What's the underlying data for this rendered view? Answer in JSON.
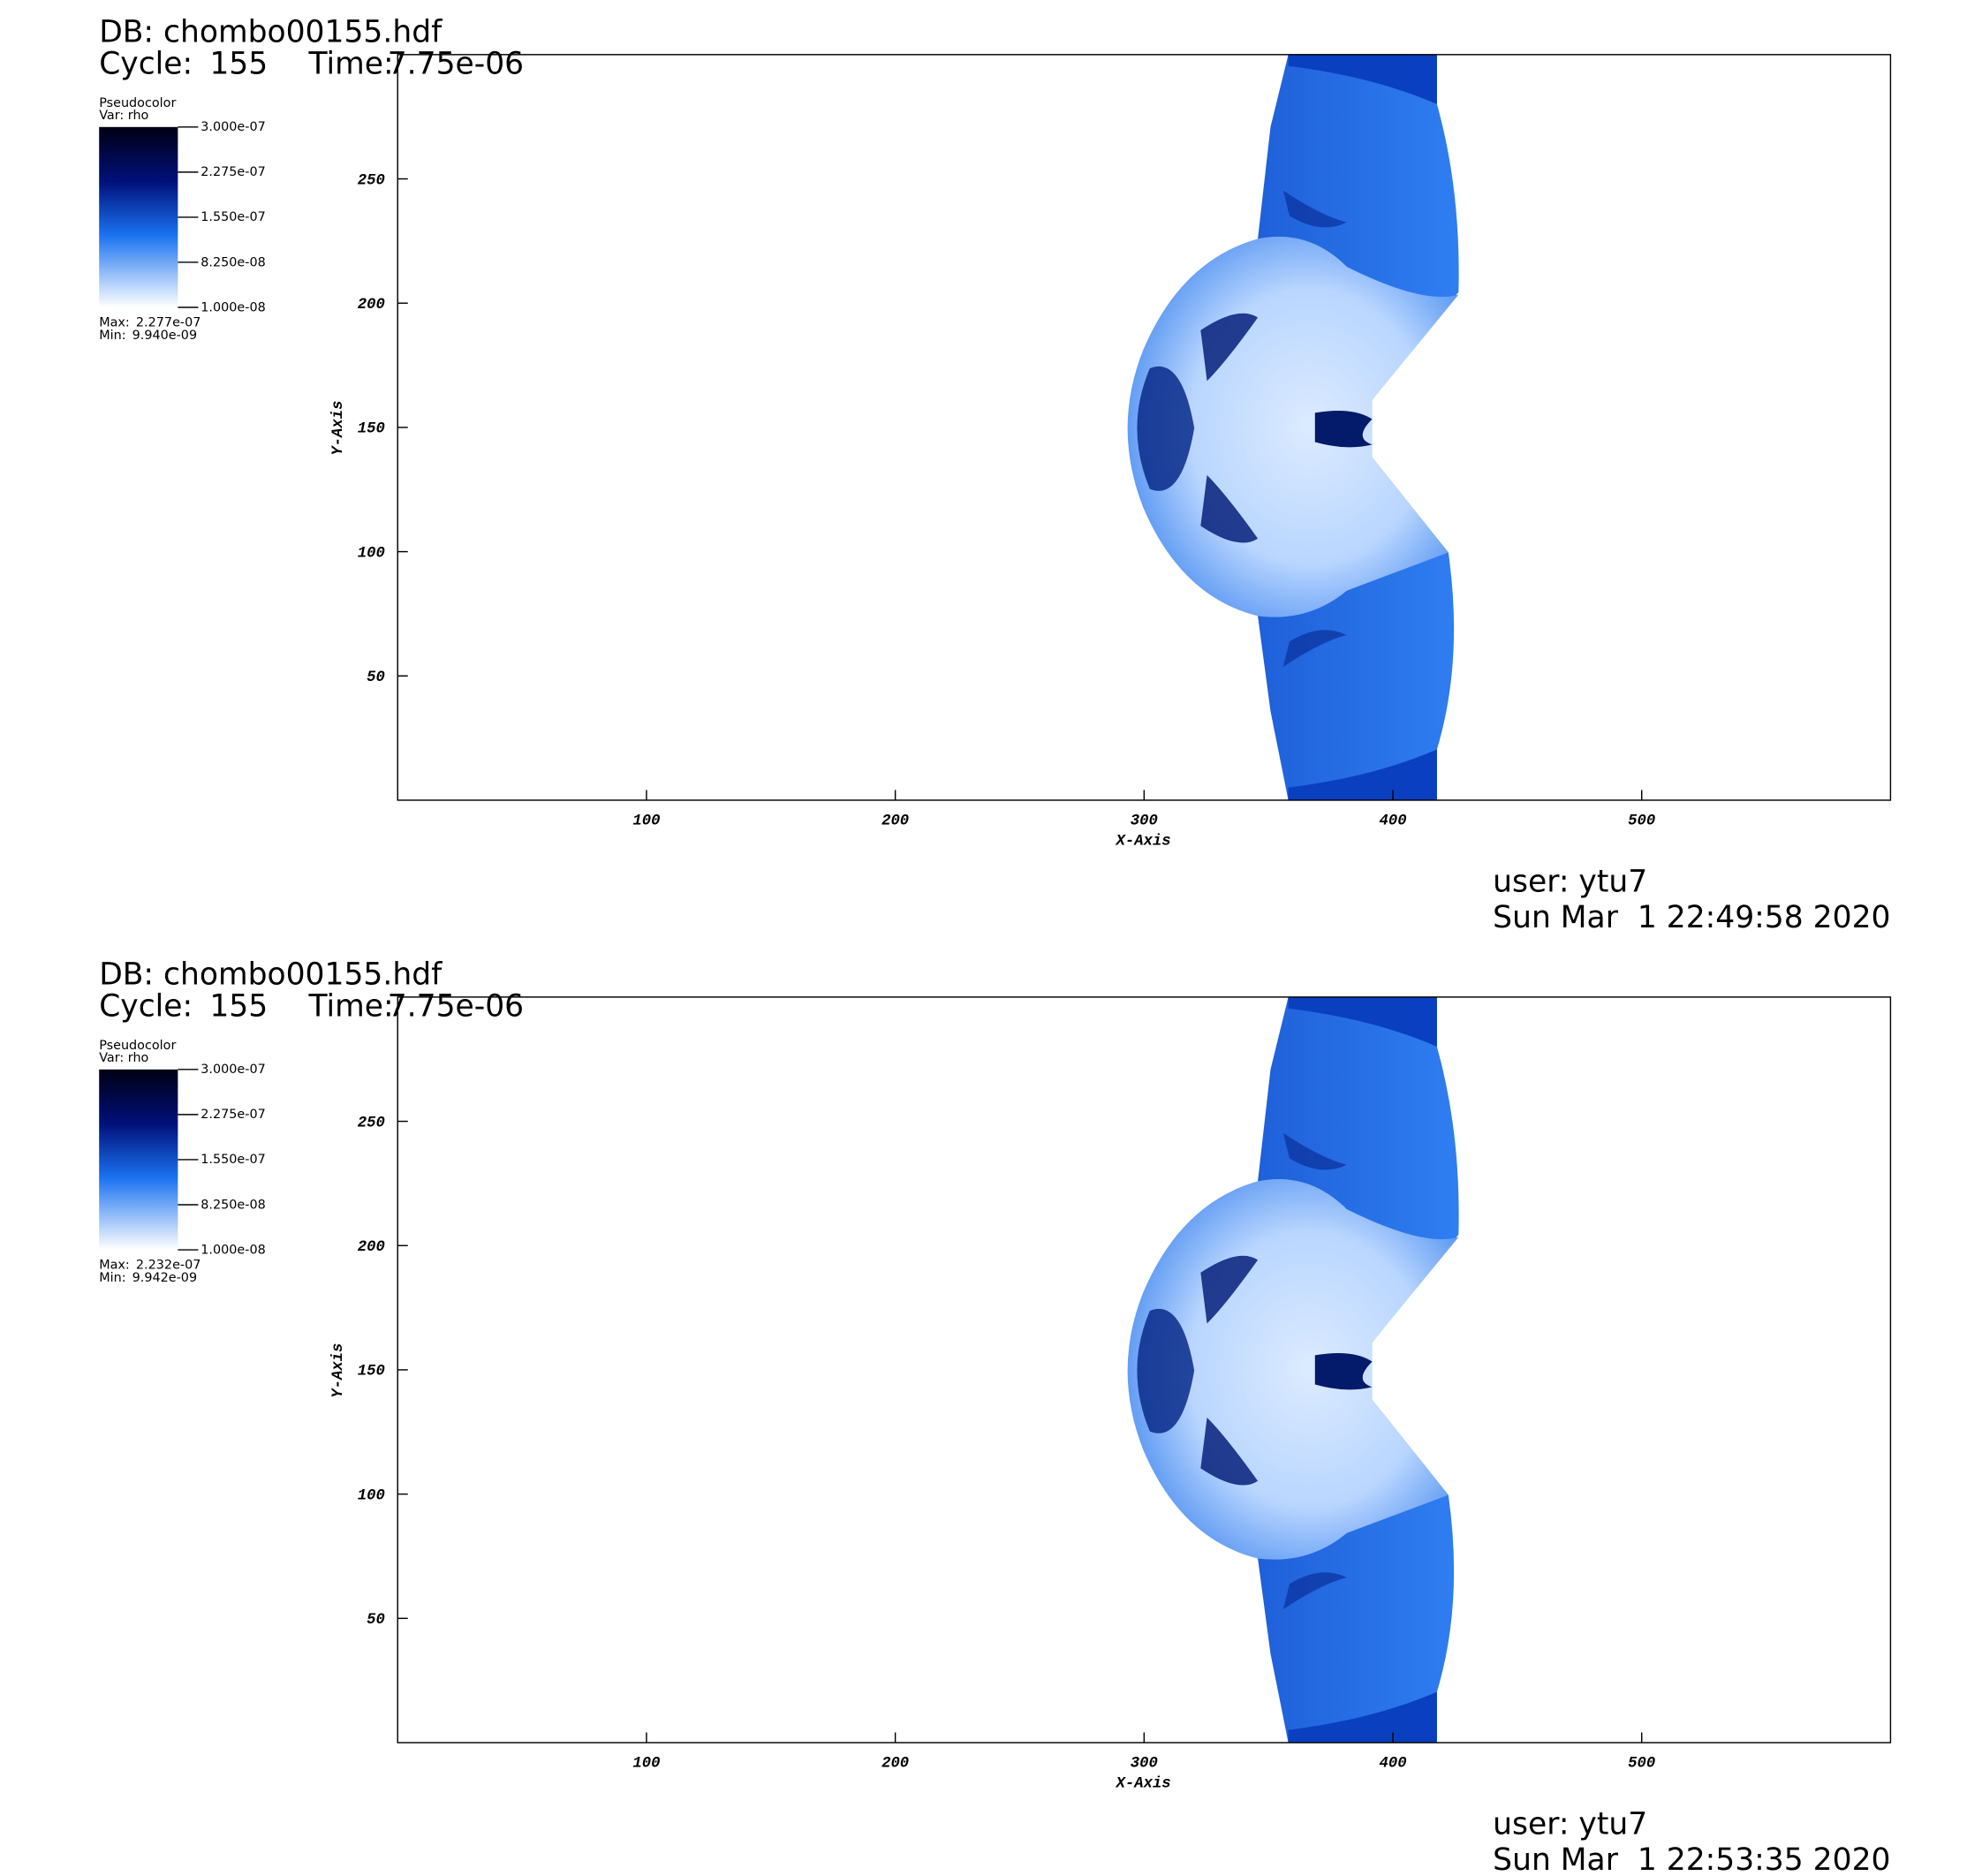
{
  "chart_data": [
    {
      "type": "pseudocolor",
      "db": "DB: chombo00155.hdf",
      "cycle_label": "Cycle:",
      "cycle": 155,
      "time_label": "Time:",
      "time": {
        "value": 7.75e-06,
        "label": "7.75e-06"
      },
      "legend_title": "Pseudocolor",
      "var": "Var: rho",
      "colorbar_lim": [
        1e-08,
        3e-07
      ],
      "colorbar_ticks": [
        {
          "value": 3e-07,
          "label": "3.000e-07"
        },
        {
          "value": 2.275e-07,
          "label": "2.275e-07"
        },
        {
          "value": 1.55e-07,
          "label": "1.550e-07"
        },
        {
          "value": 8.25e-08,
          "label": "8.250e-08"
        },
        {
          "value": 1e-08,
          "label": "1.000e-08"
        }
      ],
      "max_label": "Max:",
      "max": {
        "value": 2.277e-07,
        "label": "2.277e-07"
      },
      "min_label": "Min:",
      "min": {
        "value": 9.94e-09,
        "label": "9.940e-09"
      },
      "x_label": "X-Axis",
      "y_label": "Y-Axis",
      "xlim": [
        0,
        600
      ],
      "ylim": [
        0,
        300
      ],
      "xticks": [
        100,
        200,
        300,
        400,
        500
      ],
      "yticks": [
        50,
        100,
        150,
        200,
        250
      ],
      "user": "user: ytu7",
      "date": "Sun Mar  1 22:49:58 2020"
    },
    {
      "type": "pseudocolor",
      "db": "DB: chombo00155.hdf",
      "cycle_label": "Cycle:",
      "cycle": 155,
      "time_label": "Time:",
      "time": {
        "value": 7.75e-06,
        "label": "7.75e-06"
      },
      "legend_title": "Pseudocolor",
      "var": "Var: rho",
      "colorbar_lim": [
        1e-08,
        3e-07
      ],
      "colorbar_ticks": [
        {
          "value": 3e-07,
          "label": "3.000e-07"
        },
        {
          "value": 2.275e-07,
          "label": "2.275e-07"
        },
        {
          "value": 1.55e-07,
          "label": "1.550e-07"
        },
        {
          "value": 8.25e-08,
          "label": "8.250e-08"
        },
        {
          "value": 1e-08,
          "label": "1.000e-08"
        }
      ],
      "max_label": "Max:",
      "max": {
        "value": 2.232e-07,
        "label": "2.232e-07"
      },
      "min_label": "Min:",
      "min": {
        "value": 9.942e-09,
        "label": "9.942e-09"
      },
      "x_label": "X-Axis",
      "y_label": "Y-Axis",
      "xlim": [
        0,
        600
      ],
      "ylim": [
        0,
        300
      ],
      "xticks": [
        100,
        200,
        300,
        400,
        500
      ],
      "yticks": [
        50,
        100,
        150,
        200,
        250
      ],
      "user": "user: ytu7",
      "date": "Sun Mar  1 22:53:35 2020"
    }
  ]
}
